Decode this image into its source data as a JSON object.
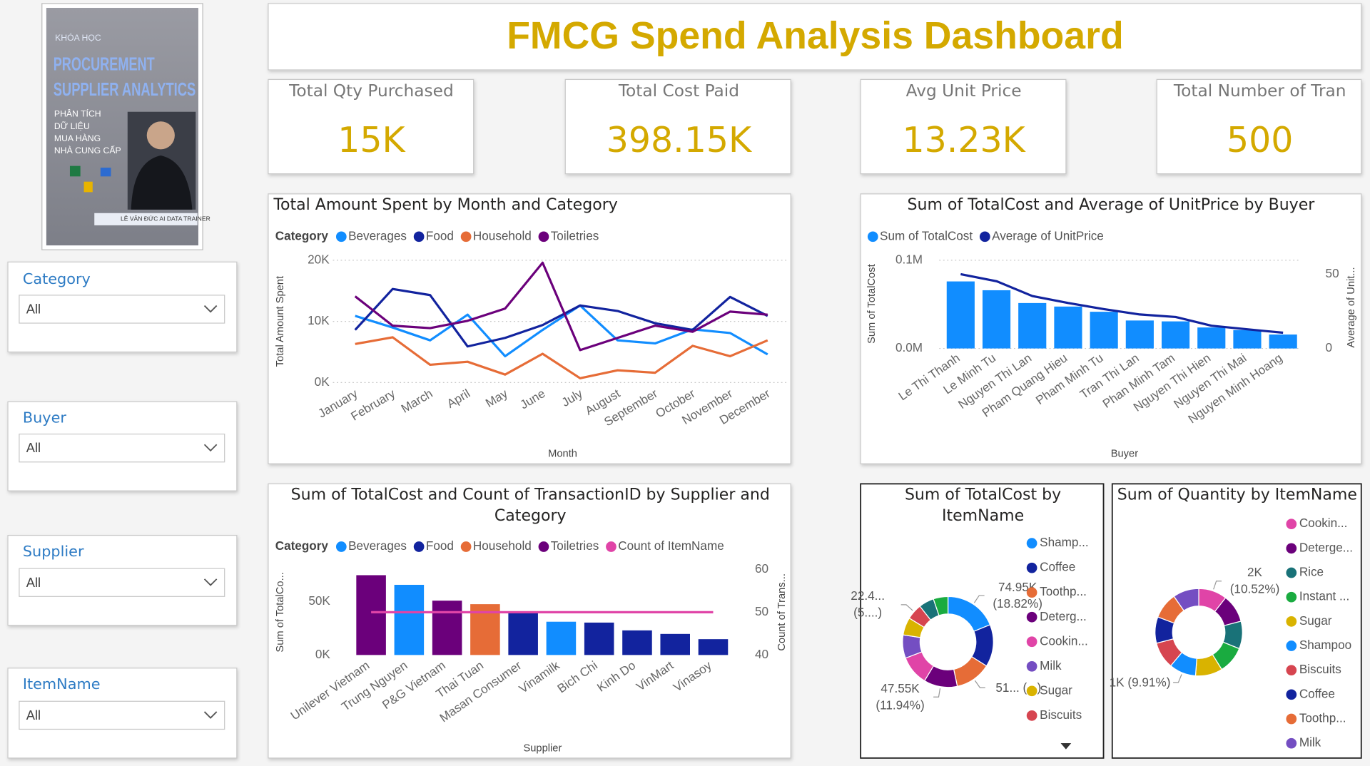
{
  "header": {
    "title": "FMCG Spend Analysis Dashboard"
  },
  "cover": {
    "course": "KHÓA HỌC",
    "title_1": "PROCUREMENT",
    "title_2": "SUPPLIER ANALYTICS",
    "subtitle": [
      "PHÂN TÍCH",
      "DỮ LIỆU",
      "MUA HÀNG",
      "NHÀ CUNG CẤP"
    ],
    "author": "LÊ VĂN ĐỨC AI DATA TRAINER"
  },
  "kpis": [
    {
      "label": "Total Qty Purchased",
      "value": "15K"
    },
    {
      "label": "Total Cost Paid",
      "value": "398.15K"
    },
    {
      "label": "Avg Unit Price",
      "value": "13.23K"
    },
    {
      "label": "Total Number of Tran",
      "value": "500"
    }
  ],
  "slicers": [
    {
      "label": "Category",
      "value": "All"
    },
    {
      "label": "Buyer",
      "value": "All"
    },
    {
      "label": "Supplier",
      "value": "All"
    },
    {
      "label": "ItemName",
      "value": "All"
    }
  ],
  "chart_data": [
    {
      "type": "line",
      "title": "Total Amount Spent by Month and Category",
      "legend_title": "Category",
      "x_label": "Month",
      "y_label": "Total Amount Spent",
      "categories": [
        "January",
        "February",
        "March",
        "April",
        "May",
        "June",
        "July",
        "August",
        "September",
        "October",
        "November",
        "December"
      ],
      "series": [
        {
          "name": "Beverages",
          "color": "#118DFF",
          "values": [
            10900,
            9000,
            6900,
            11100,
            4300,
            8600,
            12600,
            6900,
            6400,
            8700,
            8100,
            4600
          ]
        },
        {
          "name": "Food",
          "color": "#12239E",
          "values": [
            8600,
            15300,
            14300,
            5900,
            7300,
            9400,
            12600,
            11700,
            9700,
            8600,
            14000,
            10900
          ]
        },
        {
          "name": "Household",
          "color": "#E66C37",
          "values": [
            6300,
            7400,
            2900,
            3400,
            1300,
            4700,
            700,
            2000,
            1600,
            6000,
            4300,
            6900
          ]
        },
        {
          "name": "Toiletries",
          "color": "#6B007B",
          "values": [
            14100,
            9300,
            8900,
            10100,
            12100,
            19600,
            5300,
            7300,
            9300,
            8300,
            11600,
            11100
          ]
        }
      ],
      "ylim": [
        0,
        20000
      ],
      "yticks": [
        {
          "value": 0,
          "label": "0K"
        },
        {
          "value": 10000,
          "label": "10K"
        },
        {
          "value": 20000,
          "label": "20K"
        }
      ],
      "grid": true
    },
    {
      "type": "combo",
      "title": "Sum of TotalCost and Average of UnitPrice by Buyer",
      "x_label": "Buyer",
      "y_label": "Sum of TotalCost",
      "y2_label": "Average of Unit...",
      "categories": [
        "Le Thi Thanh",
        "Le Minh Tu",
        "Nguyen Thi Lan",
        "Pham Quang Hieu",
        "Pham Minh Tu",
        "Tran Thi Lan",
        "Phan Minh Tam",
        "Nguyen Thi Hien",
        "Nguyen Thi Mai",
        "Nguyen Minh Hoang"
      ],
      "series": [
        {
          "name": "Sum of TotalCost",
          "type": "bar",
          "color": "#118DFF",
          "values": [
            76000,
            66000,
            51500,
            47500,
            41600,
            31700,
            30700,
            23800,
            20800,
            15800
          ]
        },
        {
          "name": "Average of UnitPrice",
          "type": "line",
          "axis": "y2",
          "color": "#12239E",
          "values": [
            50,
            45.3,
            35.3,
            30.6,
            26.5,
            22.9,
            21.2,
            15.3,
            12.9,
            10.6
          ]
        }
      ],
      "ylim": [
        0,
        100000
      ],
      "yticks": [
        {
          "value": 0,
          "label": "0.0M"
        },
        {
          "value": 100000,
          "label": "0.1M"
        }
      ],
      "y2lim": [
        0,
        59.4
      ],
      "y2ticks": [
        0,
        50
      ],
      "grid": true
    },
    {
      "type": "combo",
      "title": "Sum of TotalCost and Count of TransactionID by Supplier and Category",
      "legend_title": "Category",
      "x_label": "Supplier",
      "y_label": "Sum of TotalCo...",
      "y2_label": "Count of Trans...",
      "categories": [
        "Unilever Vietnam",
        "Trung Nguyen",
        "P&G Vietnam",
        "Thai Tuan",
        "Masan Consumer",
        "Vinamilk",
        "Bich Chi",
        "Kinh Do",
        "VinMart",
        "Vinasoy"
      ],
      "series": [
        {
          "name": "Beverages",
          "type": "bar",
          "color": "#118DFF",
          "values": [
            null,
            65600,
            null,
            null,
            null,
            31100,
            null,
            null,
            null,
            null
          ]
        },
        {
          "name": "Food",
          "type": "bar",
          "color": "#12239E",
          "values": [
            null,
            null,
            null,
            null,
            39300,
            null,
            30300,
            23000,
            19700,
            14800
          ]
        },
        {
          "name": "Household",
          "type": "bar",
          "color": "#E66C37",
          "values": [
            null,
            null,
            null,
            47500,
            null,
            null,
            null,
            null,
            null,
            null
          ]
        },
        {
          "name": "Toiletries",
          "type": "bar",
          "color": "#6B007B",
          "values": [
            74600,
            null,
            50800,
            null,
            null,
            null,
            null,
            null,
            null,
            null
          ]
        },
        {
          "name": "Count of ItemName",
          "type": "line",
          "axis": "y2",
          "color": "#E044A7",
          "values": [
            50,
            50,
            50,
            50,
            50,
            50,
            50,
            50,
            50,
            50
          ]
        }
      ],
      "ylim": [
        0,
        80000
      ],
      "yticks": [
        {
          "value": 0,
          "label": "0K"
        },
        {
          "value": 50000,
          "label": "50K"
        }
      ],
      "y2lim": [
        40,
        60
      ],
      "y2ticks": [
        40,
        50,
        60
      ],
      "grid": false
    },
    {
      "type": "donut",
      "title": "Sum of TotalCost by ItemName",
      "categories": [
        "Shamp...",
        "Coffee",
        "Toothp...",
        "Deterg...",
        "Cookin...",
        "Milk",
        "Sugar",
        "Biscuits",
        null,
        null
      ],
      "values": [
        74950,
        60000,
        51000,
        47550,
        42000,
        33000,
        25000,
        22400,
        21500,
        20750
      ],
      "value_labels": [
        "74.95K (18.82%)",
        null,
        "51... (...)",
        "47.55K (11.94%)",
        null,
        null,
        null,
        "22.4... (5....)",
        null,
        null
      ],
      "colors": [
        "#118DFF",
        "#12239E",
        "#E66C37",
        "#6B007B",
        "#E044A7",
        "#744EC2",
        "#D9B300",
        "#D64550",
        "#197278",
        "#1AAB40"
      ]
    },
    {
      "type": "donut",
      "title": "Sum of Quantity by ItemName",
      "categories": [
        "Cookin...",
        "Deterge...",
        "Rice",
        "Instant ...",
        "Sugar",
        "Shampoo",
        "Biscuits",
        "Coffee",
        "Toothp...",
        "Milk"
      ],
      "values": [
        1578,
        1560,
        1530,
        1510,
        1500,
        1487,
        1480,
        1460,
        1455,
        1440
      ],
      "value_labels": [
        "2K (10.52%)",
        null,
        null,
        null,
        null,
        "1K (9.91%)",
        null,
        null,
        null,
        null
      ],
      "colors": [
        "#E044A7",
        "#6B007B",
        "#197278",
        "#1AAB40",
        "#D9B300",
        "#118DFF",
        "#D64550",
        "#12239E",
        "#E66C37",
        "#744EC2"
      ]
    }
  ]
}
